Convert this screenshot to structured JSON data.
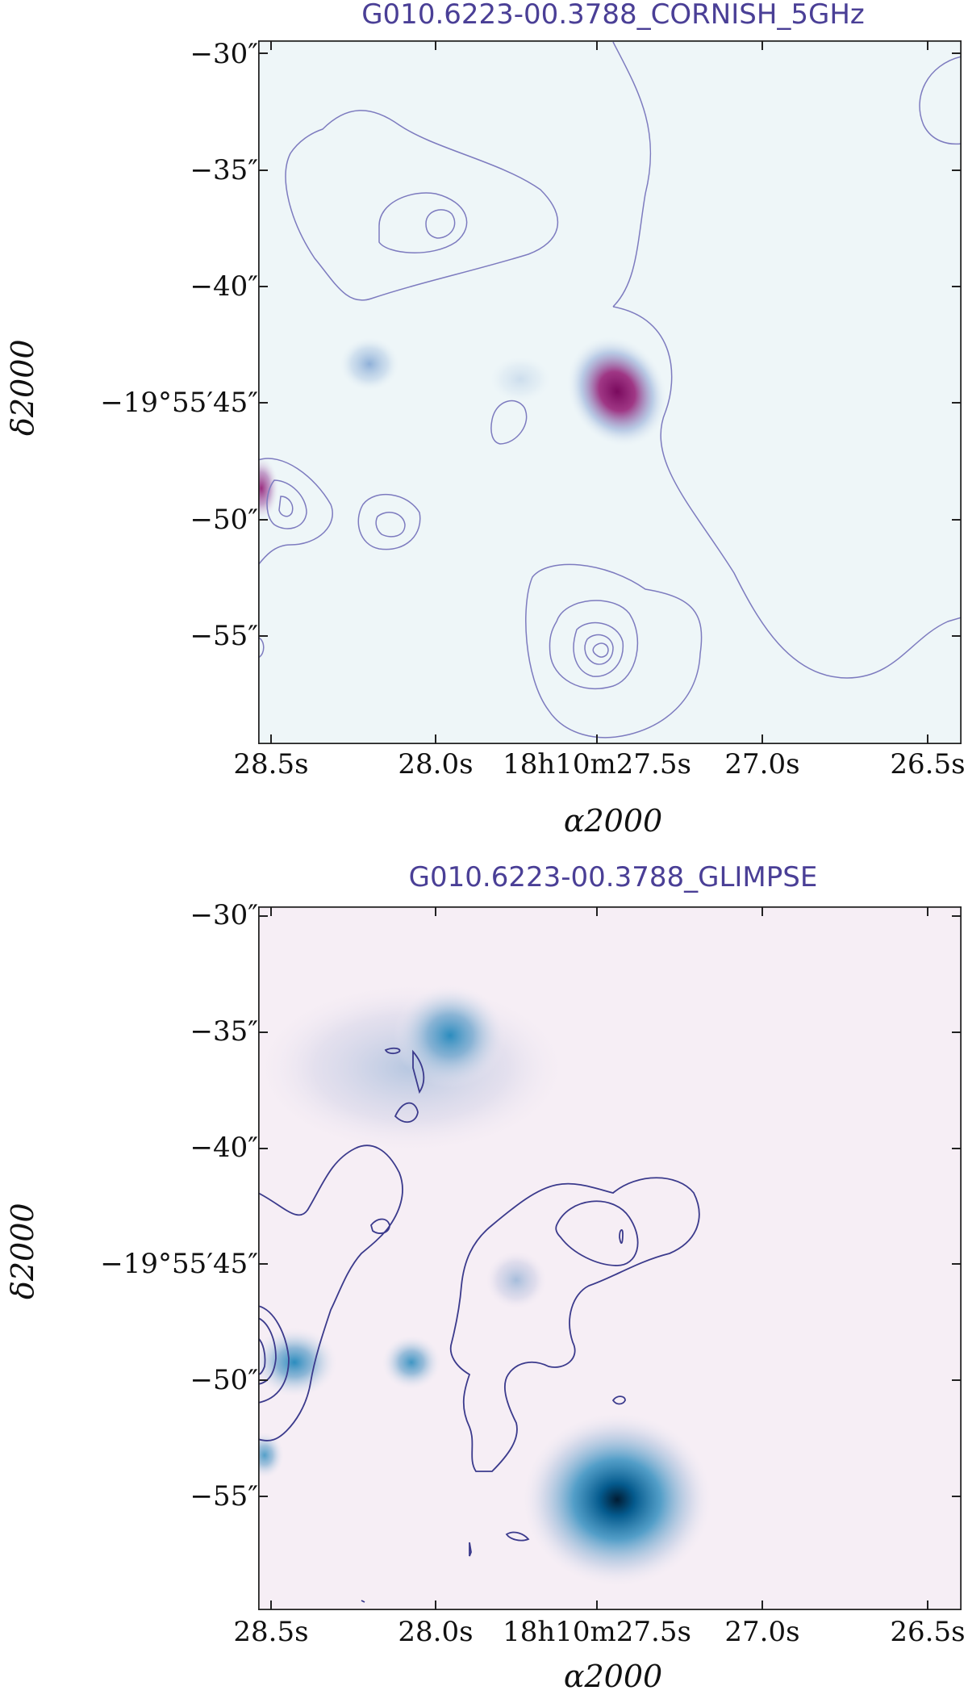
{
  "chart_data": [
    {
      "type": "heatmap",
      "title": "G010.6223-00.3788_CORNISH_5GHz",
      "xlabel": "α2000",
      "ylabel": "δ2000",
      "xticks": [
        "28.5s",
        "28.0s",
        "18h10m27.5s",
        "27.0s",
        "26.5s"
      ],
      "yticks": [
        "−30″",
        "−35″",
        "−40″",
        "−19°55′45″",
        "−50″",
        "−55″"
      ],
      "colormap_low": "#eef6f8",
      "colormap_mid": "#8fb0d8",
      "colormap_high": "#8b0f6b",
      "contour_color": "#7d7bbf",
      "grid": false
    },
    {
      "type": "heatmap",
      "title": "G010.6223-00.3788_GLIMPSE",
      "xlabel": "α2000",
      "ylabel": "δ2000",
      "xticks": [
        "28.5s",
        "28.0s",
        "18h10m27.5s",
        "27.0s",
        "26.5s"
      ],
      "yticks": [
        "−30″",
        "−35″",
        "−40″",
        "−19°55′45″",
        "−50″",
        "−55″"
      ],
      "colormap_low": "#fbf1f7",
      "colormap_mid": "#74a9cf",
      "colormap_high": "#023858",
      "contour_color": "#3b3a8c",
      "grid": false
    }
  ]
}
